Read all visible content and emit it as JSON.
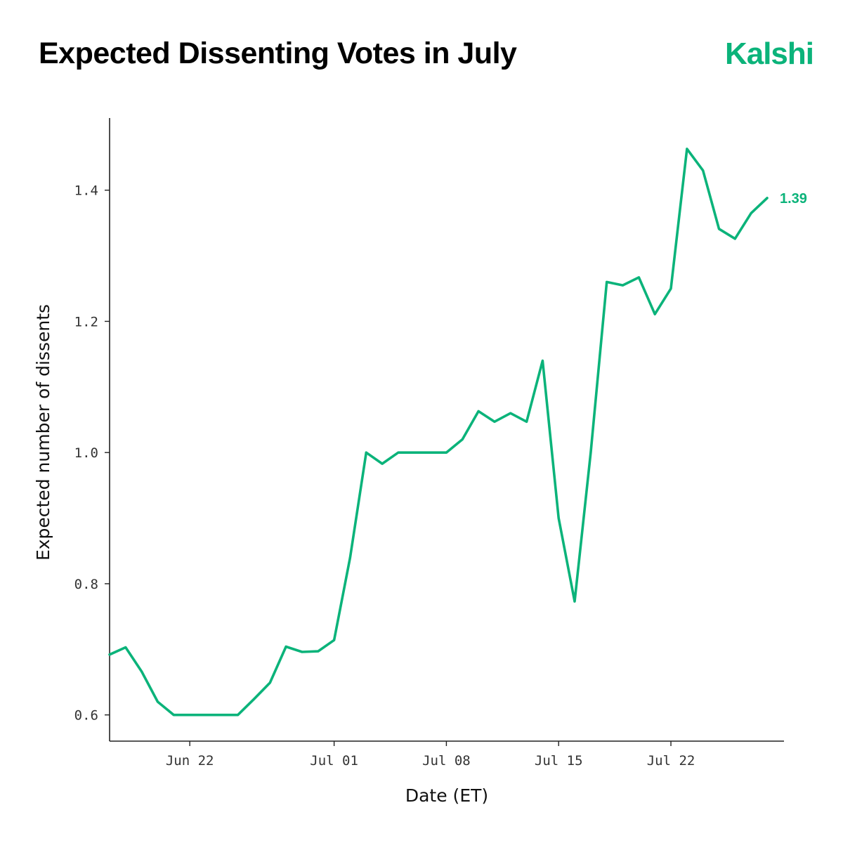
{
  "header": {
    "title": "Expected Dissenting Votes in July",
    "logo_text": "Kalshi"
  },
  "colors": {
    "accent": "#0bb37a",
    "axis": "#222222",
    "text": "#000000"
  },
  "chart_data": {
    "type": "line",
    "title": "Expected Dissenting Votes in July",
    "xlabel": "Date (ET)",
    "ylabel": "Expected number of dissents",
    "x_ticks": [
      "Jun 22",
      "Jul 01",
      "Jul 08",
      "Jul 15",
      "Jul 22"
    ],
    "y_ticks": [
      "0.6",
      "0.8",
      "1.0",
      "1.2",
      "1.4"
    ],
    "ylim": [
      0.56,
      1.51
    ],
    "xlim": [
      "Jun 17",
      "Jul 28"
    ],
    "grid": false,
    "end_label": "1.39",
    "series": [
      {
        "points": [
          {
            "x": "Jun 17",
            "y": 0.692
          },
          {
            "x": "Jun 18",
            "y": 0.703
          },
          {
            "x": "Jun 19",
            "y": 0.666
          },
          {
            "x": "Jun 20",
            "y": 0.62
          },
          {
            "x": "Jun 21",
            "y": 0.6
          },
          {
            "x": "Jun 22",
            "y": 0.6
          },
          {
            "x": "Jun 23",
            "y": 0.6
          },
          {
            "x": "Jun 24",
            "y": 0.6
          },
          {
            "x": "Jun 25",
            "y": 0.6
          },
          {
            "x": "Jun 26",
            "y": 0.624
          },
          {
            "x": "Jun 27",
            "y": 0.649
          },
          {
            "x": "Jun 28",
            "y": 0.704
          },
          {
            "x": "Jun 29",
            "y": 0.696
          },
          {
            "x": "Jun 30",
            "y": 0.697
          },
          {
            "x": "Jul 01",
            "y": 0.714
          },
          {
            "x": "Jul 02",
            "y": 0.84
          },
          {
            "x": "Jul 03",
            "y": 1.0
          },
          {
            "x": "Jul 04",
            "y": 0.983
          },
          {
            "x": "Jul 05",
            "y": 1.0
          },
          {
            "x": "Jul 06",
            "y": 1.0
          },
          {
            "x": "Jul 07",
            "y": 1.0
          },
          {
            "x": "Jul 08",
            "y": 1.0
          },
          {
            "x": "Jul 09",
            "y": 1.02
          },
          {
            "x": "Jul 10",
            "y": 1.063
          },
          {
            "x": "Jul 11",
            "y": 1.047
          },
          {
            "x": "Jul 12",
            "y": 1.06
          },
          {
            "x": "Jul 13",
            "y": 1.047
          },
          {
            "x": "Jul 14",
            "y": 1.14
          },
          {
            "x": "Jul 15",
            "y": 0.9
          },
          {
            "x": "Jul 16",
            "y": 0.773
          },
          {
            "x": "Jul 17",
            "y": 1.0
          },
          {
            "x": "Jul 18",
            "y": 1.26
          },
          {
            "x": "Jul 19",
            "y": 1.255
          },
          {
            "x": "Jul 20",
            "y": 1.267
          },
          {
            "x": "Jul 21",
            "y": 1.211
          },
          {
            "x": "Jul 22",
            "y": 1.25
          },
          {
            "x": "Jul 23",
            "y": 1.463
          },
          {
            "x": "Jul 24",
            "y": 1.43
          },
          {
            "x": "Jul 25",
            "y": 1.341
          },
          {
            "x": "Jul 26",
            "y": 1.326
          },
          {
            "x": "Jul 27",
            "y": 1.365
          },
          {
            "x": "Jul 28",
            "y": 1.388
          }
        ]
      }
    ]
  }
}
